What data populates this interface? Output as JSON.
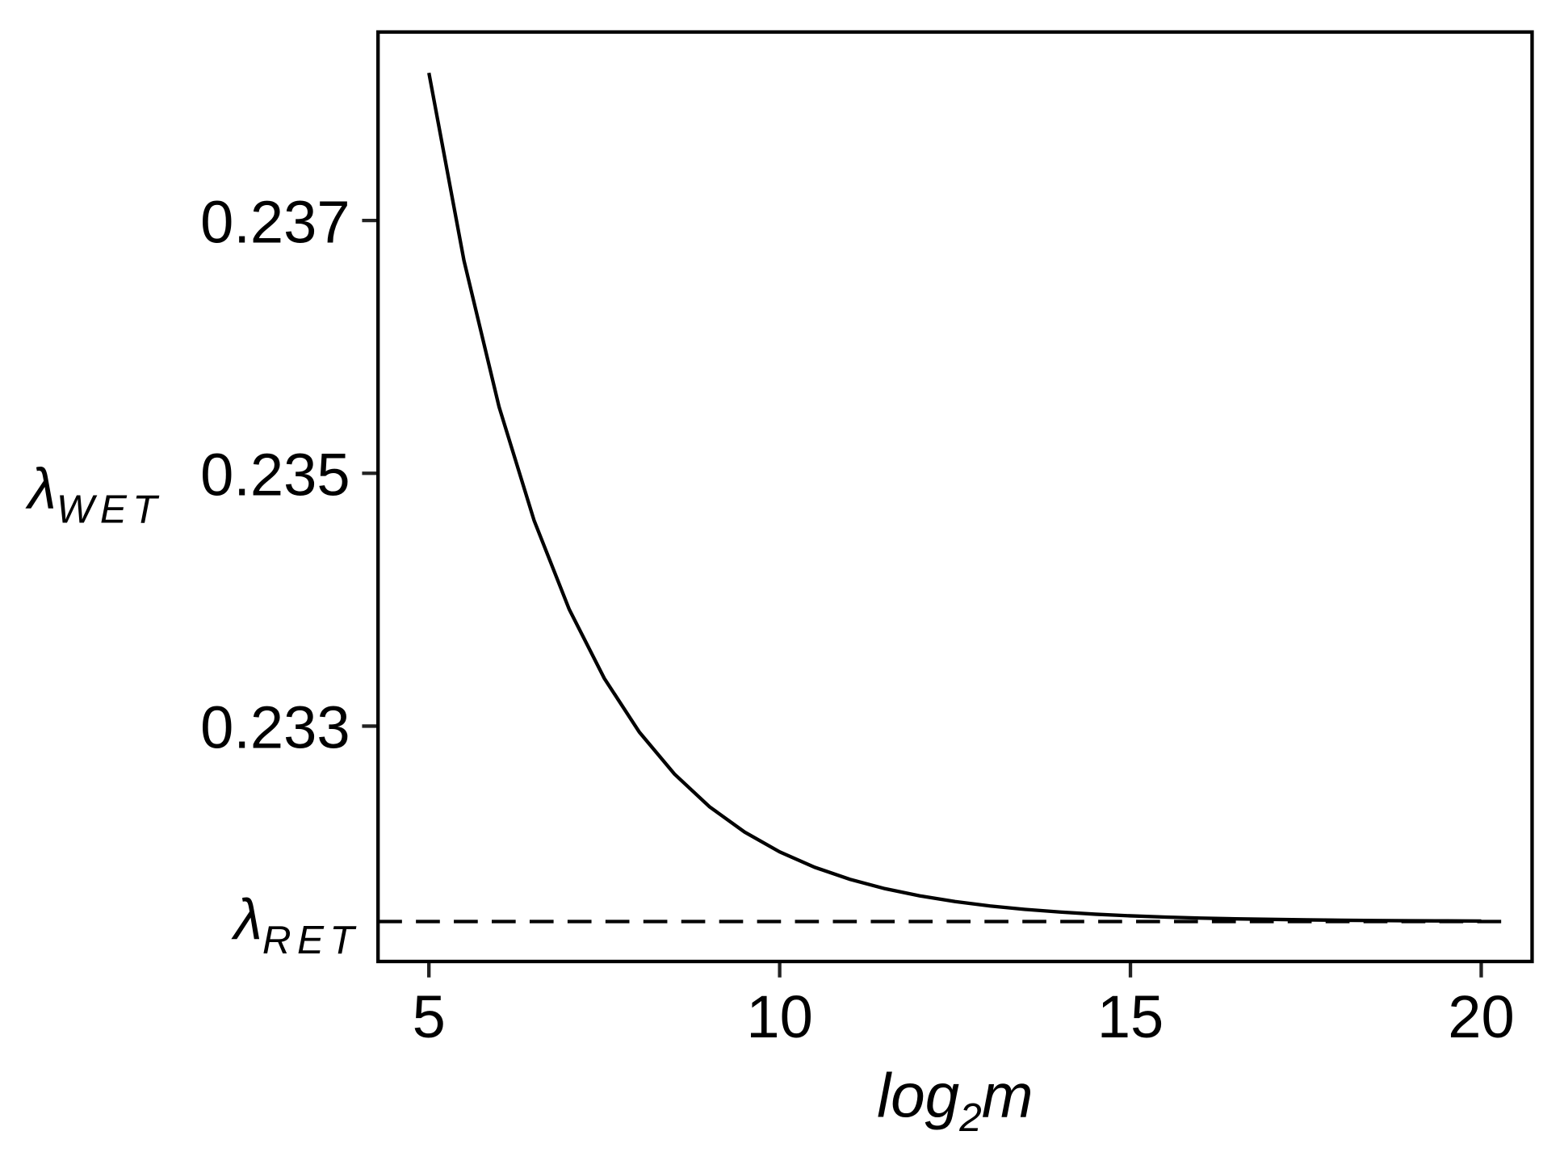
{
  "chart_data": {
    "type": "line",
    "x_label": {
      "main": "log",
      "sub": "2",
      "tail": "m"
    },
    "y_label": {
      "main": "λ",
      "sub": "WET"
    },
    "x": [
      5,
      5.5,
      6,
      6.5,
      7,
      7.5,
      8,
      8.5,
      9,
      9.5,
      10,
      10.5,
      11,
      11.5,
      12,
      12.5,
      13,
      13.5,
      14,
      14.5,
      15,
      15.5,
      16,
      16.5,
      17,
      17.5,
      18,
      18.5,
      19,
      19.5,
      20
    ],
    "series": [
      {
        "color": "#000000",
        "values": [
          0.238168,
          0.236683,
          0.235526,
          0.234626,
          0.233924,
          0.233378,
          0.232952,
          0.232621,
          0.232362,
          0.232162,
          0.232005,
          0.231883,
          0.231788,
          0.231714,
          0.231657,
          0.231612,
          0.231577,
          0.23155,
          0.231529,
          0.231512,
          0.231499,
          0.231489,
          0.231481,
          0.231475,
          0.231471,
          0.231467,
          0.231464,
          0.231462,
          0.23146,
          0.231459,
          0.231458
        ]
      }
    ],
    "reference_line": {
      "value": 0.231454,
      "main": "λ",
      "sub": "RET",
      "color": "#000000",
      "dashed": true
    },
    "xlim": [
      4.275,
      20.725
    ],
    "ylim": [
      0.231138,
      0.238491
    ],
    "xticks": [
      5,
      10,
      15,
      20
    ],
    "yticks": [
      0.233,
      0.235,
      0.237
    ]
  }
}
